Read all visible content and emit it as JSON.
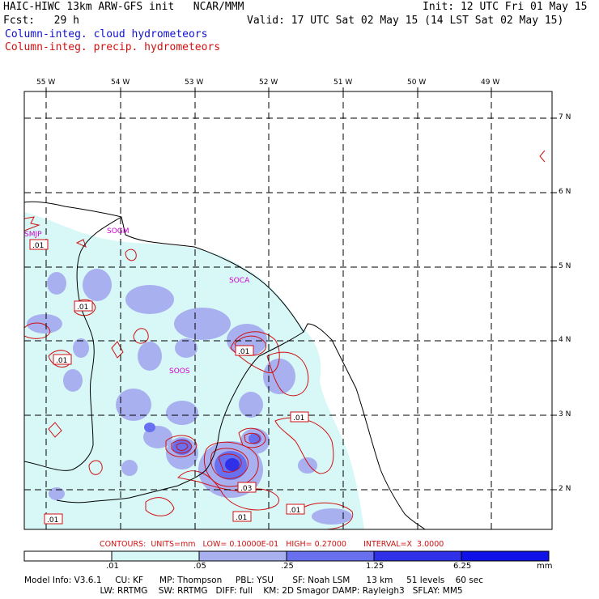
{
  "header": {
    "model": "HAIC-HIWC 13km ARW-GFS init   NCAR/MMM",
    "init": "Init: 12 UTC Fri 01 May 15",
    "fcst": "Fcst:   29 h",
    "valid": "Valid: 17 UTC Sat 02 May 15 (14 LST Sat 02 May 15)",
    "legend_cloud": "Column-integ. cloud hydrometeors",
    "legend_precip": "Column-integ. precip. hydrometeors"
  },
  "colors": {
    "cloud_line": "#1010d0",
    "precip_line": "#d01010",
    "grid": "#000000",
    "station": "#d000d0",
    "shade_1": "#d8f8f8",
    "shade_2": "#a8b0f0",
    "shade_3": "#6870f0",
    "shade_4": "#3030e8"
  },
  "longitudes": [
    "55 W",
    "54 W",
    "53 W",
    "52 W",
    "51 W",
    "50 W",
    "49 W"
  ],
  "latitudes": [
    "7 N",
    "6 N",
    "5 N",
    "4 N",
    "3 N",
    "2 N"
  ],
  "stations": [
    "SMJP",
    "SOGM",
    "SOCA",
    "SOOS"
  ],
  "contour_labels": [
    ".01",
    ".01",
    ".01",
    ".01",
    ".01",
    ".03",
    ".01",
    ".01",
    ".01"
  ],
  "contours_line": "CONTOURS:  UNITS=mm   LOW= 0.10000E-01   HIGH= 0.27000       INTERVAL=X  3.0000",
  "colorbar": {
    "ticks": [
      ".01",
      ".05",
      ".25",
      "1.25",
      "6.25"
    ],
    "unit": "mm",
    "colors": [
      "#ffffff",
      "#d8f8f8",
      "#a8b0f0",
      "#6870f0",
      "#3030e8",
      "#1010e8"
    ]
  },
  "footer": {
    "line1": "Model Info: V3.6.1     CU: KF      MP: Thompson     PBL: YSU       SF: Noah LSM      13 km     51 levels    60 sec",
    "line2": "                            LW: RRTMG    SW: RRTMG   DIFF: full    KM: 2D Smagor DAMP: Rayleigh3   SFLAY: MM5"
  }
}
